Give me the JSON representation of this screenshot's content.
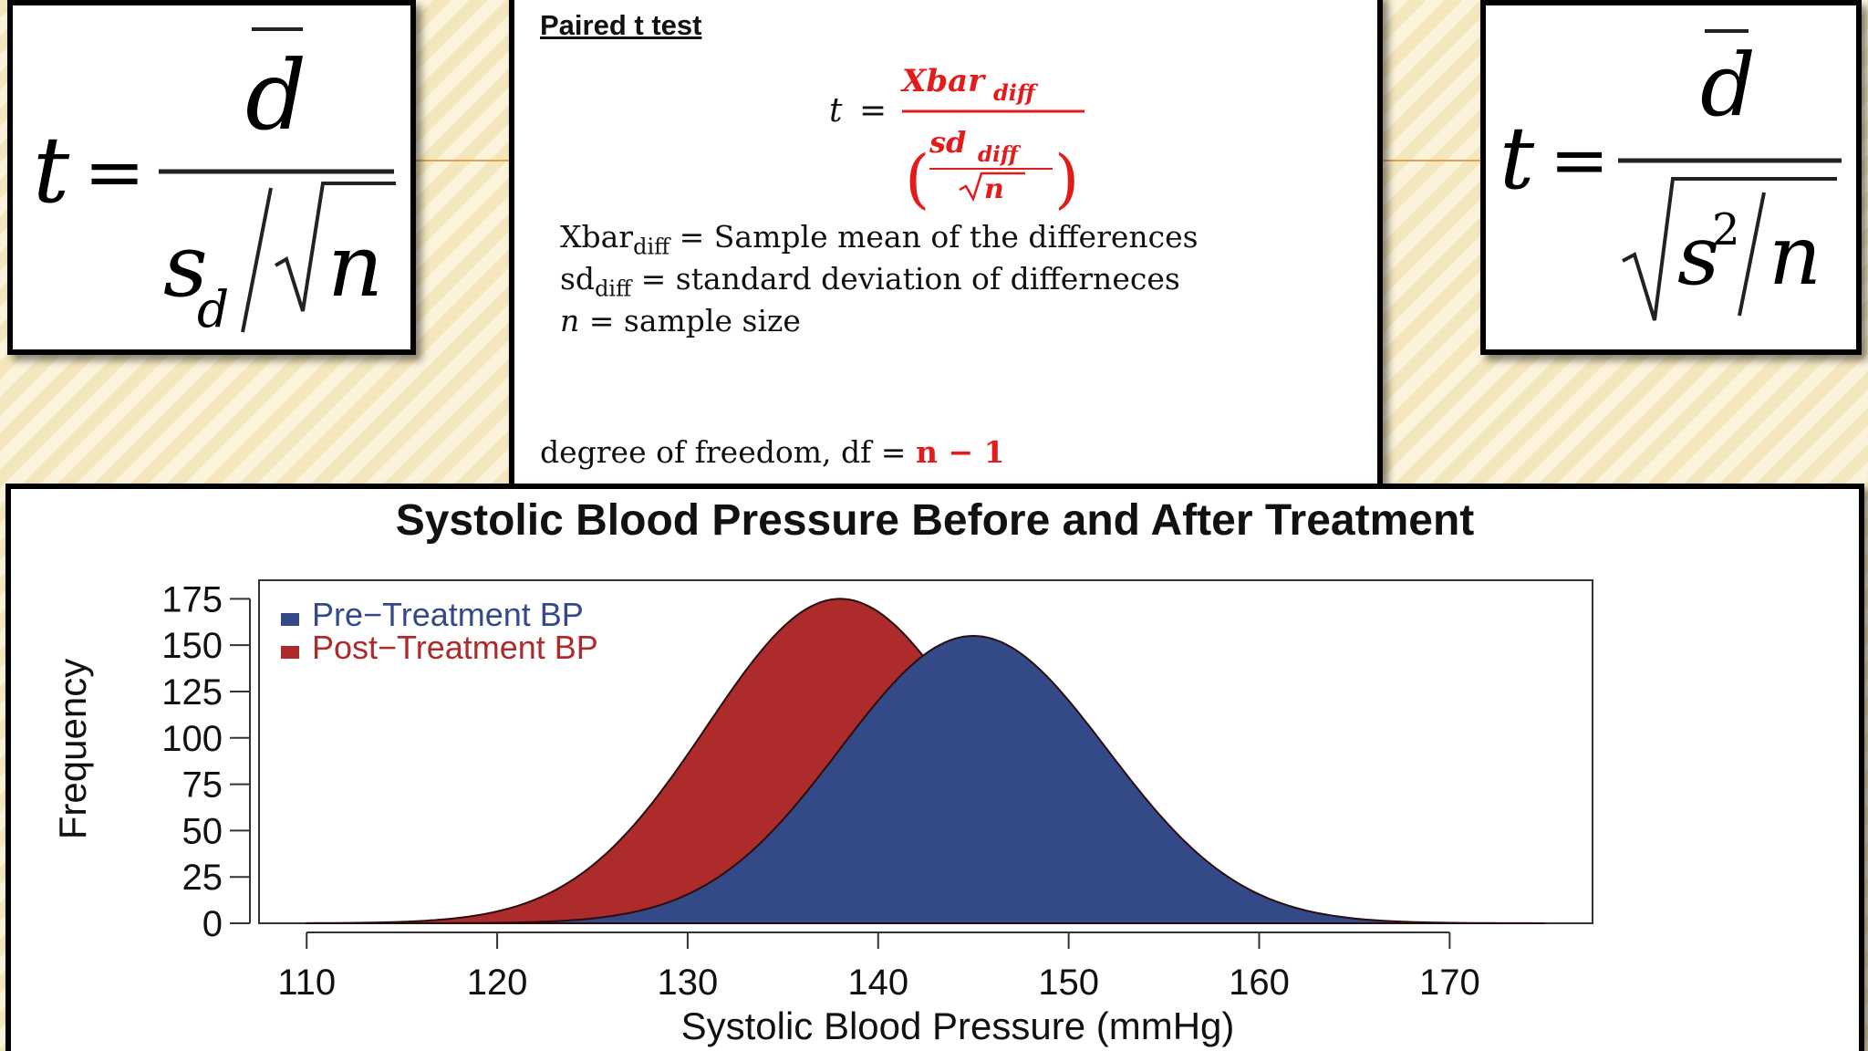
{
  "formula_left": {
    "lhs": "t",
    "eq": "=",
    "numerator": "d",
    "denom_s": "s",
    "denom_sub": "d",
    "denom_n": "n"
  },
  "formula_right": {
    "lhs": "t",
    "eq": "=",
    "numerator": "d",
    "denom_s": "s",
    "denom_exp": "2",
    "denom_n": "n"
  },
  "paired": {
    "title": "Paired t test",
    "formula": {
      "t": "t",
      "eq": "=",
      "numerator": "Xbar",
      "numerator_sub": "diff",
      "den_sd": "sd",
      "den_sub": "diff",
      "den_n": "n"
    },
    "definitions": [
      {
        "sym": "Xbar",
        "sub": "diff",
        "text": "= Sample mean of the differences"
      },
      {
        "sym": "sd",
        "sub": "diff",
        "text": "= standard deviation of differneces"
      },
      {
        "sym": "n",
        "sub": "",
        "text": "= sample size"
      }
    ],
    "df_label": "degree of freedom, df  =",
    "df_value": "n − 1"
  },
  "colors": {
    "pre": "#344a88",
    "post": "#ad2b2b",
    "accent_red": "#e31b1b"
  },
  "chart_data": {
    "type": "area",
    "title": "Systolic Blood Pressure Before and After Treatment",
    "xlabel": "Systolic Blood Pressure (mmHg)",
    "ylabel": "Frequency",
    "xlim": [
      107.5,
      177.5
    ],
    "ylim": [
      0,
      185
    ],
    "xticks": [
      "110",
      "120",
      "130",
      "140",
      "150",
      "160",
      "170"
    ],
    "yticks": [
      "0",
      "25",
      "50",
      "75",
      "100",
      "125",
      "150",
      "175"
    ],
    "legend_position": "top-left",
    "series": [
      {
        "name": "Post−Treatment BP",
        "color": "#ad2b2b",
        "x_range": [
          110,
          175
        ],
        "peak_x": 138,
        "peak_y": 175,
        "sd": 7
      },
      {
        "name": "Pre−Treatment BP",
        "color": "#344a88",
        "x_range": [
          110,
          175
        ],
        "peak_x": 145,
        "peak_y": 155,
        "sd": 7
      }
    ],
    "legend_order": [
      "Pre−Treatment BP",
      "Post−Treatment BP"
    ]
  }
}
